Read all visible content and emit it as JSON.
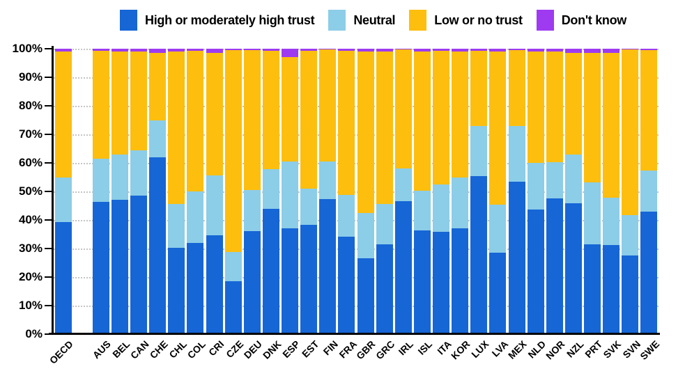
{
  "legend": [
    {
      "label": "High or moderately high trust",
      "color": "#1666D6",
      "key": "high"
    },
    {
      "label": "Neutral",
      "color": "#8CCDE8",
      "key": "neutral"
    },
    {
      "label": "Low or no trust",
      "color": "#FDBE0E",
      "key": "low"
    },
    {
      "label": "Don't know",
      "color": "#9E3BF0",
      "key": "dont_know"
    }
  ],
  "y_axis": {
    "ticks": [
      "100%",
      "90%",
      "80%",
      "70%",
      "60%",
      "50%",
      "40%",
      "30%",
      "20%",
      "10%",
      "0%"
    ],
    "min": 0,
    "max": 100
  },
  "chart_data": {
    "type": "bar",
    "stacked": true,
    "unit": "percent of respondents",
    "title": "",
    "xlabel": "",
    "ylabel": "",
    "ylim": [
      0,
      100
    ],
    "grid": "dotted horizontal lines every 10%",
    "legend_position": "top",
    "gap_after_first_category": true,
    "categories": [
      "OECD",
      "AUS",
      "BEL",
      "CAN",
      "CHE",
      "CHL",
      "COL",
      "CRI",
      "CZE",
      "DEU",
      "DNK",
      "ESP",
      "EST",
      "FIN",
      "FRA",
      "GBR",
      "GRC",
      "IRL",
      "ISL",
      "ITA",
      "KOR",
      "LUX",
      "LVA",
      "MEX",
      "NLD",
      "NOR",
      "NZL",
      "PRT",
      "SVK",
      "SVN",
      "SWE"
    ],
    "series": [
      {
        "name": "High or moderately high trust",
        "color": "#1666D6",
        "values": [
          39.3,
          46.3,
          47.0,
          48.5,
          62.0,
          30.2,
          32.0,
          34.6,
          18.5,
          36.2,
          43.9,
          37.0,
          38.2,
          47.2,
          34.1,
          26.5,
          31.5,
          46.5,
          36.3,
          35.9,
          37.0,
          55.4,
          28.5,
          53.4,
          43.7,
          47.6,
          45.8,
          31.5,
          31.3,
          27.6,
          42.9
        ]
      },
      {
        "name": "Neutral",
        "color": "#8CCDE8",
        "values": [
          15.7,
          15.1,
          16.0,
          16.0,
          13.0,
          15.3,
          18.0,
          21.1,
          10.2,
          14.3,
          13.9,
          23.6,
          12.9,
          13.3,
          14.7,
          16.0,
          14.0,
          11.6,
          13.9,
          16.5,
          18.0,
          17.5,
          16.9,
          19.5,
          16.2,
          12.6,
          17.2,
          21.6,
          16.4,
          14.0,
          14.4
        ]
      },
      {
        "name": "Low or no trust",
        "color": "#FDBE0E",
        "values": [
          44.0,
          37.9,
          36.0,
          34.5,
          23.5,
          53.5,
          49.2,
          42.8,
          70.9,
          48.9,
          41.5,
          36.4,
          48.3,
          39.2,
          50.4,
          56.5,
          53.5,
          41.6,
          48.8,
          46.8,
          44.0,
          26.3,
          53.6,
          26.5,
          39.1,
          38.8,
          35.5,
          45.4,
          50.9,
          58.1,
          42.1
        ]
      },
      {
        "name": "Don't know",
        "color": "#9E3BF0",
        "values": [
          1.0,
          0.7,
          1.0,
          1.0,
          1.5,
          1.0,
          0.8,
          1.5,
          0.4,
          0.6,
          0.7,
          3.0,
          0.6,
          0.3,
          0.8,
          1.0,
          1.0,
          0.3,
          1.0,
          0.8,
          1.0,
          0.8,
          1.0,
          0.6,
          1.0,
          1.0,
          1.5,
          1.5,
          1.4,
          0.3,
          0.6
        ]
      }
    ]
  }
}
